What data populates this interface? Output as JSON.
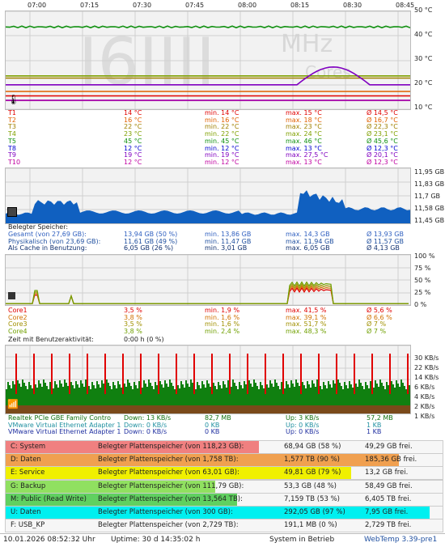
{
  "temperature": {
    "time_ticks": [
      "07:00",
      "07:15",
      "07:30",
      "07:45",
      "08:00",
      "08:15",
      "08:30",
      "08:45"
    ],
    "y_ticks": [
      "50 °C",
      "40 °C",
      "30 °C",
      "20 °C",
      "10 °C"
    ],
    "watermark_unit": "MHz",
    "watermark_cores": "Cores",
    "sensors": [
      {
        "name": "T1",
        "value": "14 °C",
        "min": "min. 14 °C",
        "max": "max. 15 °C",
        "avg": "Ø 14,5 °C",
        "color": "#e00000"
      },
      {
        "name": "T2",
        "value": "16 °C",
        "min": "min. 16 °C",
        "max": "max. 18 °C",
        "avg": "Ø 16,7 °C",
        "color": "#e06000"
      },
      {
        "name": "T3",
        "value": "22 °C",
        "min": "min. 22 °C",
        "max": "max. 23 °C",
        "avg": "Ø 22,3 °C",
        "color": "#a08000"
      },
      {
        "name": "T4",
        "value": "23 °C",
        "min": "min. 22 °C",
        "max": "max. 24 °C",
        "avg": "Ø 23,1 °C",
        "color": "#80a000"
      },
      {
        "name": "T5",
        "value": "45 °C",
        "min": "min. 45 °C",
        "max": "max. 46 °C",
        "avg": "Ø 45,6 °C",
        "color": "#109010"
      },
      {
        "name": "T8",
        "value": "12 °C",
        "min": "min. 12 °C",
        "max": "max. 13 °C",
        "avg": "Ø 12,3 °C",
        "color": "#0000d0"
      },
      {
        "name": "T9",
        "value": "19 °C",
        "min": "min. 19 °C",
        "max": "max. 27,5 °C",
        "avg": "Ø 20,1 °C",
        "color": "#8000c0"
      },
      {
        "name": "T10",
        "value": "12 °C",
        "min": "min. 12 °C",
        "max": "max. 13 °C",
        "avg": "Ø 12,3 °C",
        "color": "#c000a0"
      }
    ]
  },
  "memory": {
    "y_ticks": [
      "11,95 GB",
      "11,83 GB",
      "11,7 GB",
      "11,58 GB",
      "11,45 GB"
    ],
    "heading": "Belegter Speicher:",
    "rows": [
      {
        "name": "Gesamt (von 27,69 GB):",
        "value": "13,94 GB (50 %)",
        "min": "min. 13,86 GB",
        "max": "max. 14,3 GB",
        "avg": "Ø 13,93 GB",
        "color": "#3060c0"
      },
      {
        "name": "Physikalisch (von 23,69 GB):",
        "value": "11,61 GB (49 %)",
        "min": "min. 11,47 GB",
        "max": "max. 11,94 GB",
        "avg": "Ø 11,57 GB",
        "color": "#2050a0"
      },
      {
        "name": "Als Cache in Benutzung:",
        "value": "6,05 GB (26 %)",
        "min": "min. 3,01 GB",
        "max": "max. 6,05 GB",
        "avg": "Ø 4,13 GB",
        "color": "#103070"
      }
    ]
  },
  "cpu": {
    "y_ticks": [
      "100 %",
      "75 %",
      "50 %",
      "25 %",
      "0 %"
    ],
    "cores": [
      {
        "name": "Core1",
        "value": "3,5 %",
        "min": "min. 1,9 %",
        "max": "max. 41,5 %",
        "avg": "Ø 5,6 %",
        "color": "#e00000"
      },
      {
        "name": "Core2",
        "value": "3,8 %",
        "min": "min. 1,6 %",
        "max": "max. 39,1 %",
        "avg": "Ø 6,6 %",
        "color": "#d07000"
      },
      {
        "name": "Core3",
        "value": "3,5 %",
        "min": "min. 1,6 %",
        "max": "max. 51,7 %",
        "avg": "Ø 7 %",
        "color": "#a09000"
      },
      {
        "name": "Core4",
        "value": "3,8 %",
        "min": "min. 2,4 %",
        "max": "max. 48,3 %",
        "avg": "Ø 7 %",
        "color": "#70a000"
      }
    ],
    "activity_label": "Zeit mit Benutzeraktivität:",
    "activity_value": "0:00 h (0 %)"
  },
  "network": {
    "y_ticks": [
      "30 KB/s",
      "22 KB/s",
      "14 KB/s",
      "6 KB/s",
      "4 KB/s",
      "2 KB/s",
      "1 KB/s"
    ],
    "adapters": [
      {
        "name": "Realtek PCIe GBE Family Contro",
        "down": "Down: 13 KB/s",
        "down_total": "82,7 MB",
        "up": "Up: 3 KB/s",
        "up_total": "57,2 MB",
        "color": "#107010"
      },
      {
        "name": "VMware Virtual Ethernet Adapter 1",
        "down": "Down: 0 KB/s",
        "down_total": "0 KB",
        "up": "Up: 0 KB/s",
        "up_total": "1 KB",
        "color": "#2090a0"
      },
      {
        "name": "VMware Virtual Ethernet Adapter 1",
        "down": "Down: 0 KB/s",
        "down_total": "0 KB",
        "up": "Up: 0 KB/s",
        "up_total": "1 KB",
        "color": "#2030a0"
      }
    ]
  },
  "disks": [
    {
      "drive": "C: System",
      "label": "Belegter Plattenspeicher (von 118,23 GB):",
      "used": "68,94 GB (58 %)",
      "free": "49,29 GB frei.",
      "fill": 0.58,
      "color": "#f08080"
    },
    {
      "drive": "D: Daten",
      "label": "Belegter Plattenspeicher (von 1,758 TB):",
      "used": "1,577 TB (90 %)",
      "free": "185,36 GB frei.",
      "fill": 0.9,
      "color": "#f0a050"
    },
    {
      "drive": "E: Service",
      "label": "Belegter Plattenspeicher (von 63,01 GB):",
      "used": "49,81 GB (79 %)",
      "free": "13,2 GB frei.",
      "fill": 0.79,
      "color": "#f0f000"
    },
    {
      "drive": "G: Backup",
      "label": "Belegter Plattenspeicher (von 111,79 GB):",
      "used": "53,3 GB (48 %)",
      "free": "58,49 GB frei.",
      "fill": 0.48,
      "color": "#90e060"
    },
    {
      "drive": "M: Public (Read Write)",
      "label": "Belegter Plattenspeicher (von 13,564 TB):",
      "used": "7,159 TB (53 %)",
      "free": "6,405 TB frei.",
      "fill": 0.53,
      "color": "#60d060"
    },
    {
      "drive": "U: Daten",
      "label": "Belegter Plattenspeicher (von 300 GB):",
      "used": "292,05 GB (97 %)",
      "free": "7,95 GB frei.",
      "fill": 0.97,
      "color": "#00f0f0"
    },
    {
      "drive": "F: USB_KP",
      "label": "Belegter Plattenspeicher (von 2,729 TB):",
      "used": "191,1 MB (0 %)",
      "free": "2,729 TB frei.",
      "fill": 0.0,
      "color": "#e060e0"
    }
  ],
  "footer": {
    "datetime": "10.01.2026 08:52:32 Uhr",
    "uptime": "Uptime: 30 d 14:35:02 h",
    "status": "System in Betrieb",
    "app": "WebTemp 3.39-pre1"
  }
}
